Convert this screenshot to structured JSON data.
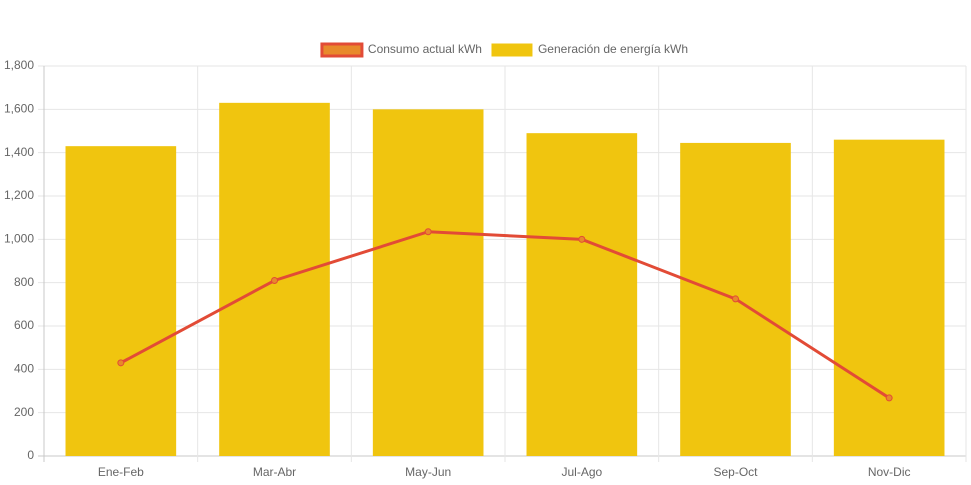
{
  "chart_data": {
    "type": "bar",
    "categories": [
      "Ene-Feb",
      "Mar-Abr",
      "May-Jun",
      "Jul-Ago",
      "Sep-Oct",
      "Nov-Dic"
    ],
    "series": [
      {
        "name": "Consumo actual kWh",
        "type": "line",
        "color": "#e24b36",
        "point_color": "#e8892b",
        "values": [
          430,
          810,
          1035,
          1000,
          725,
          268
        ]
      },
      {
        "name": "Generación de energía kWh",
        "type": "bar",
        "color": "#f0c50f",
        "values": [
          1430,
          1630,
          1600,
          1490,
          1445,
          1460
        ]
      }
    ],
    "ylim": [
      0,
      1800
    ],
    "yticks": [
      0,
      200,
      400,
      600,
      800,
      {
        "value": 1000,
        "label": "1,000"
      },
      {
        "value": 1200,
        "label": "1,200"
      },
      {
        "value": 1400,
        "label": "1,400"
      },
      {
        "value": 1600,
        "label": "1,600"
      },
      {
        "value": 1800,
        "label": "1,800"
      }
    ],
    "grid": true,
    "legend": "top"
  }
}
